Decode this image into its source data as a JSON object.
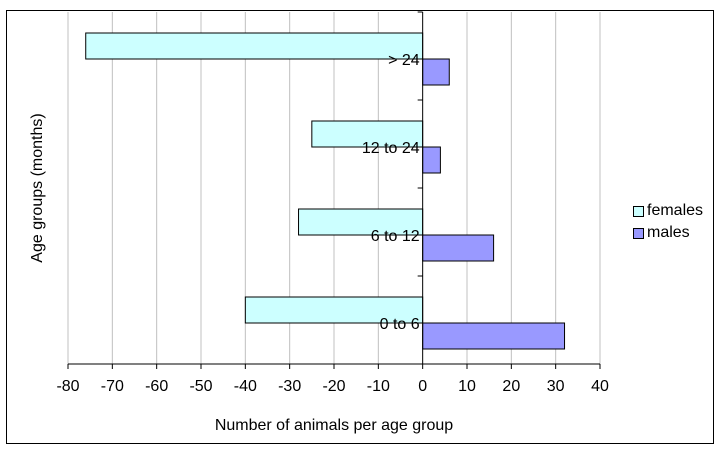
{
  "chart_data": {
    "type": "bar",
    "orientation": "horizontal",
    "title": "",
    "xlabel": "Number of animals per age group",
    "ylabel": "Age groups (months)",
    "xlim": [
      -80,
      40
    ],
    "x_ticks": [
      "-80",
      "-70",
      "-60",
      "-50",
      "-40",
      "-30",
      "-20",
      "-10",
      "0",
      "10",
      "20",
      "30",
      "40"
    ],
    "categories": [
      "0 to 6",
      "6 to 12",
      "12 to 24",
      "> 24"
    ],
    "series": [
      {
        "name": "females",
        "values": [
          -40,
          -28,
          -25,
          -76
        ],
        "color": "#ccffff"
      },
      {
        "name": "males",
        "values": [
          32,
          16,
          4,
          6
        ],
        "color": "#9999ff"
      }
    ],
    "grid": true,
    "legend_position": "right"
  }
}
